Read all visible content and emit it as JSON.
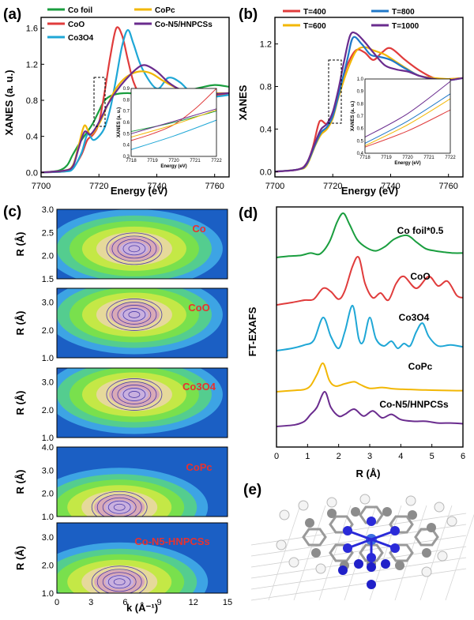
{
  "panels": {
    "a": "(a)",
    "b": "(b)",
    "c": "(c)",
    "d": "(d)",
    "e": "(e)"
  },
  "chart_data": [
    {
      "id": "a",
      "type": "line",
      "xlabel": "Energy (eV)",
      "ylabel": "XANES (a. u.)",
      "xlim": [
        7700,
        7765
      ],
      "ylim": [
        -0.05,
        1.72
      ],
      "xticks": [
        "7700",
        "7720",
        "7740",
        "7760"
      ],
      "yticks": [
        "0.0",
        "0.4",
        "0.8",
        "1.2",
        "1.6"
      ],
      "legend_position": "top",
      "series": [
        {
          "name": "Co foil",
          "color": "#1a9e3f",
          "x": [
            7700,
            7706,
            7709,
            7711,
            7714,
            7716,
            7718,
            7720,
            7722,
            7725,
            7730,
            7735,
            7740,
            7745,
            7750,
            7755,
            7760,
            7765
          ],
          "y": [
            0.0,
            0.02,
            0.08,
            0.2,
            0.36,
            0.45,
            0.55,
            0.68,
            0.8,
            0.86,
            0.88,
            0.86,
            0.86,
            0.88,
            0.9,
            0.94,
            0.97,
            0.95
          ]
        },
        {
          "name": "CoO",
          "color": "#e03c3c",
          "x": [
            7700,
            7708,
            7711,
            7714,
            7716,
            7718,
            7720,
            7722,
            7724,
            7726,
            7728,
            7730,
            7732,
            7735,
            7738,
            7742,
            7746,
            7750,
            7755,
            7760,
            7765
          ],
          "y": [
            0.0,
            0.01,
            0.05,
            0.2,
            0.36,
            0.42,
            0.55,
            0.9,
            1.3,
            1.6,
            1.52,
            1.25,
            1.0,
            0.82,
            0.78,
            0.82,
            0.87,
            0.86,
            0.83,
            0.85,
            0.88
          ]
        },
        {
          "name": "Co3O4",
          "color": "#1fa7d6",
          "x": [
            7700,
            7708,
            7711,
            7714,
            7716,
            7718,
            7720,
            7722,
            7724,
            7726,
            7728,
            7730,
            7732,
            7735,
            7740,
            7744,
            7748,
            7752,
            7756,
            7760,
            7765
          ],
          "y": [
            0.0,
            0.01,
            0.04,
            0.22,
            0.42,
            0.36,
            0.4,
            0.5,
            0.72,
            1.05,
            1.4,
            1.58,
            1.42,
            1.15,
            0.93,
            1.05,
            1.0,
            0.88,
            0.85,
            0.84,
            0.86
          ]
        },
        {
          "name": "CoPc",
          "color": "#f2b705",
          "x": [
            7700,
            7708,
            7711,
            7713,
            7715,
            7717,
            7719,
            7721,
            7723,
            7725,
            7727,
            7730,
            7734,
            7738,
            7742,
            7746,
            7750,
            7755,
            7760,
            7765
          ],
          "y": [
            0.0,
            0.02,
            0.08,
            0.3,
            0.52,
            0.42,
            0.48,
            0.6,
            0.75,
            0.88,
            0.98,
            1.07,
            1.12,
            1.1,
            1.02,
            0.95,
            0.9,
            0.89,
            0.88,
            0.88
          ]
        },
        {
          "name": "Co-N5/HNPCSs",
          "color": "#6a2c8e",
          "x": [
            7700,
            7708,
            7711,
            7713,
            7715,
            7717,
            7719,
            7721,
            7723,
            7726,
            7729,
            7733,
            7736,
            7740,
            7744,
            7748,
            7752,
            7756,
            7760,
            7765
          ],
          "y": [
            0.0,
            0.02,
            0.07,
            0.27,
            0.45,
            0.42,
            0.5,
            0.62,
            0.75,
            0.9,
            1.02,
            1.15,
            1.19,
            1.12,
            1.0,
            0.92,
            0.88,
            0.86,
            0.87,
            0.88
          ]
        }
      ],
      "inset": {
        "xlabel": "Energy (eV)",
        "ylabel": "XANES (a. u.)",
        "xlim": [
          7718,
          7722
        ],
        "ylim": [
          0.3,
          0.9
        ],
        "xticks": [
          "7718",
          "7719",
          "7720",
          "7721",
          "7722"
        ],
        "yticks": [
          "0.3",
          "0.4",
          "0.5",
          "0.6",
          "0.7",
          "0.8",
          "0.9"
        ],
        "series": [
          {
            "color": "#1a9e3f",
            "x": [
              7718,
              7720,
              7722
            ],
            "y": [
              0.52,
              0.6,
              0.7
            ]
          },
          {
            "color": "#e03c3c",
            "x": [
              7718,
              7719,
              7720,
              7721,
              7722
            ],
            "y": [
              0.44,
              0.5,
              0.58,
              0.72,
              0.9
            ]
          },
          {
            "color": "#1fa7d6",
            "x": [
              7718,
              7720,
              7722
            ],
            "y": [
              0.36,
              0.48,
              0.62
            ]
          },
          {
            "color": "#f2b705",
            "x": [
              7718,
              7720,
              7722
            ],
            "y": [
              0.47,
              0.58,
              0.71
            ]
          },
          {
            "color": "#6a2c8e",
            "x": [
              7718,
              7720,
              7722
            ],
            "y": [
              0.5,
              0.61,
              0.72
            ]
          }
        ]
      }
    },
    {
      "id": "b",
      "type": "line",
      "xlabel": "Energy (eV)",
      "ylabel": "XANES",
      "xlim": [
        7700,
        7765
      ],
      "ylim": [
        -0.05,
        1.45
      ],
      "xticks": [
        "7700",
        "7720",
        "7740",
        "7760"
      ],
      "yticks": [
        "0.0",
        "0.4",
        "0.8",
        "1.2"
      ],
      "legend_position": "top",
      "series": [
        {
          "name": "T=400",
          "color": "#e03c3c",
          "x": [
            7700,
            7708,
            7711,
            7713,
            7715,
            7716,
            7718,
            7720,
            7722,
            7725,
            7728,
            7731,
            7734,
            7737,
            7740,
            7745,
            7750,
            7755,
            7760,
            7765
          ],
          "y": [
            0.0,
            0.02,
            0.08,
            0.22,
            0.44,
            0.48,
            0.45,
            0.55,
            0.75,
            1.0,
            1.14,
            1.12,
            1.05,
            1.12,
            1.16,
            1.05,
            0.95,
            0.88,
            0.87,
            0.88
          ]
        },
        {
          "name": "T=600",
          "color": "#f2b705",
          "x": [
            7700,
            7708,
            7711,
            7714,
            7716,
            7718,
            7720,
            7722,
            7725,
            7728,
            7731,
            7734,
            7738,
            7742,
            7746,
            7750,
            7755,
            7760,
            7765
          ],
          "y": [
            0.0,
            0.02,
            0.06,
            0.25,
            0.35,
            0.4,
            0.5,
            0.7,
            0.95,
            1.13,
            1.17,
            1.14,
            1.1,
            1.03,
            0.96,
            0.9,
            0.88,
            0.87,
            0.88
          ]
        },
        {
          "name": "T=800",
          "color": "#1f78c8",
          "x": [
            7700,
            7708,
            7711,
            7714,
            7716,
            7718,
            7720,
            7722,
            7725,
            7727,
            7730,
            7733,
            7736,
            7740,
            7745,
            7750,
            7755,
            7760,
            7765
          ],
          "y": [
            0.0,
            0.02,
            0.07,
            0.26,
            0.37,
            0.42,
            0.52,
            0.72,
            1.05,
            1.26,
            1.2,
            1.1,
            1.08,
            1.05,
            0.97,
            0.9,
            0.87,
            0.86,
            0.88
          ]
        },
        {
          "name": "T=1000",
          "color": "#6a2c8e",
          "x": [
            7700,
            7708,
            7711,
            7714,
            7716,
            7718,
            7720,
            7722,
            7724,
            7726,
            7728,
            7731,
            7734,
            7738,
            7742,
            7746,
            7750,
            7755,
            7760,
            7765
          ],
          "y": [
            0.0,
            0.02,
            0.08,
            0.28,
            0.4,
            0.45,
            0.56,
            0.78,
            1.05,
            1.28,
            1.3,
            1.22,
            1.12,
            1.0,
            0.96,
            0.94,
            0.9,
            0.87,
            0.86,
            0.88
          ]
        }
      ],
      "inset": {
        "xlabel": "Energy (eV)",
        "ylabel": "XANES (a. u.)",
        "xlim": [
          7718,
          7722
        ],
        "ylim": [
          0.4,
          1.0
        ],
        "xticks": [
          "7718",
          "7719",
          "7720",
          "7721",
          "7722"
        ],
        "yticks": [
          "0.4",
          "0.5",
          "0.6",
          "0.7",
          "0.8",
          "0.9",
          "1.0"
        ],
        "series": [
          {
            "color": "#e03c3c",
            "x": [
              7718,
              7720,
              7722
            ],
            "y": [
              0.45,
              0.58,
              0.75
            ]
          },
          {
            "color": "#f2b705",
            "x": [
              7718,
              7720,
              7722
            ],
            "y": [
              0.46,
              0.63,
              0.84
            ]
          },
          {
            "color": "#1f78c8",
            "x": [
              7718,
              7720,
              7722
            ],
            "y": [
              0.48,
              0.66,
              0.88
            ]
          },
          {
            "color": "#6a2c8e",
            "x": [
              7718,
              7720,
              7722
            ],
            "y": [
              0.53,
              0.72,
              0.98
            ]
          }
        ]
      }
    },
    {
      "id": "c",
      "type": "heatmap",
      "xlabel": "k (Å⁻¹)",
      "ylabel": "R (Å)",
      "xlim": [
        0,
        15
      ],
      "xticks": [
        "0",
        "3",
        "6",
        "9",
        "12",
        "15"
      ],
      "panels": [
        {
          "label": "Co",
          "ylim": [
            1.5,
            3.0
          ],
          "yticks": [
            "1.5",
            "2.0",
            "2.5",
            "3.0"
          ],
          "peak_k": 6.8,
          "peak_r": 2.15
        },
        {
          "label": "CoO",
          "ylim": [
            1.0,
            3.5
          ],
          "yticks": [
            "1.0",
            "2.0",
            "3.0"
          ],
          "peak_k": 6.8,
          "peak_r": 2.55
        },
        {
          "label": "Co3O4",
          "ylim": [
            1.0,
            3.5
          ],
          "yticks": [
            "1.0",
            "2.0",
            "3.0"
          ],
          "peak_k": 6.8,
          "peak_r": 2.55
        },
        {
          "label": "CoPc",
          "ylim": [
            1.0,
            4.0
          ],
          "yticks": [
            "1.0",
            "2.0",
            "3.0",
            "4.0"
          ],
          "peak_k": 5.5,
          "peak_r": 1.4
        },
        {
          "label": "Co-N5-HNPCSs",
          "ylim": [
            1.0,
            3.5
          ],
          "yticks": [
            "1.0",
            "2.0",
            "3.0"
          ],
          "peak_k": 5.5,
          "peak_r": 1.4
        }
      ]
    },
    {
      "id": "d",
      "type": "line",
      "xlabel": "R (Å)",
      "ylabel": "FT-EXAFS",
      "xlim": [
        0,
        6
      ],
      "xticks": [
        "0",
        "1",
        "2",
        "3",
        "4",
        "5",
        "6"
      ],
      "series": [
        {
          "name": "Co foil*0.5",
          "color": "#1a9e3f",
          "x": [
            0,
            0.4,
            0.8,
            1.1,
            1.4,
            1.7,
            1.95,
            2.15,
            2.35,
            2.6,
            2.9,
            3.2,
            3.5,
            3.8,
            4.2,
            4.5,
            4.8,
            5.1,
            5.4,
            5.7,
            6.0
          ],
          "y": [
            0.0,
            0.03,
            0.05,
            0.1,
            0.08,
            0.35,
            0.8,
            1.0,
            0.75,
            0.4,
            0.22,
            0.15,
            0.25,
            0.42,
            0.5,
            0.35,
            0.2,
            0.15,
            0.12,
            0.1,
            0.1
          ]
        },
        {
          "name": "CoO",
          "color": "#e03c3c",
          "x": [
            0,
            0.5,
            0.9,
            1.2,
            1.5,
            1.75,
            2.0,
            2.2,
            2.45,
            2.65,
            2.85,
            3.1,
            3.35,
            3.6,
            3.85,
            4.1,
            4.5,
            4.9,
            5.2,
            5.5,
            5.8,
            6.0
          ],
          "y": [
            0.0,
            0.05,
            0.1,
            0.12,
            0.35,
            0.28,
            0.12,
            0.3,
            0.82,
            1.0,
            0.45,
            0.15,
            0.25,
            0.1,
            0.45,
            0.6,
            0.35,
            0.6,
            0.4,
            0.5,
            0.2,
            0.15
          ]
        },
        {
          "name": "Co3O4",
          "color": "#1fa7d6",
          "x": [
            0,
            0.5,
            0.9,
            1.2,
            1.5,
            1.75,
            2.0,
            2.2,
            2.45,
            2.65,
            2.8,
            3.0,
            3.2,
            3.45,
            3.7,
            3.9,
            4.1,
            4.3,
            4.5,
            4.7,
            4.9,
            5.2,
            5.6,
            6.0
          ],
          "y": [
            0.0,
            0.05,
            0.12,
            0.22,
            0.7,
            0.3,
            0.05,
            0.4,
            0.95,
            0.25,
            0.2,
            0.7,
            0.25,
            0.1,
            0.2,
            0.05,
            0.15,
            0.1,
            0.4,
            0.58,
            0.3,
            0.1,
            0.12,
            0.08
          ]
        },
        {
          "name": "CoPc",
          "color": "#f2b705",
          "x": [
            0,
            0.6,
            0.9,
            1.1,
            1.3,
            1.5,
            1.7,
            1.9,
            2.2,
            2.5,
            2.7,
            3.0,
            3.4,
            3.8,
            4.3,
            4.8,
            5.3,
            5.8,
            6.0
          ],
          "y": [
            0.0,
            0.05,
            0.08,
            0.22,
            0.6,
            1.0,
            0.4,
            0.2,
            0.28,
            0.35,
            0.25,
            0.12,
            0.15,
            0.1,
            0.08,
            0.06,
            0.05,
            0.04,
            0.04
          ]
        },
        {
          "name": "Co-N5/HNPCSs",
          "color": "#6a2c8e",
          "x": [
            0,
            0.6,
            0.9,
            1.1,
            1.3,
            1.55,
            1.75,
            2.0,
            2.2,
            2.5,
            2.8,
            3.1,
            3.4,
            3.7,
            4.0,
            4.4,
            4.8,
            5.2,
            5.6,
            6.0
          ],
          "y": [
            0.0,
            0.05,
            0.15,
            0.35,
            0.55,
            1.0,
            0.55,
            0.3,
            0.35,
            0.5,
            0.3,
            0.45,
            0.25,
            0.35,
            0.2,
            0.15,
            0.15,
            0.1,
            0.1,
            0.08
          ]
        }
      ]
    }
  ]
}
